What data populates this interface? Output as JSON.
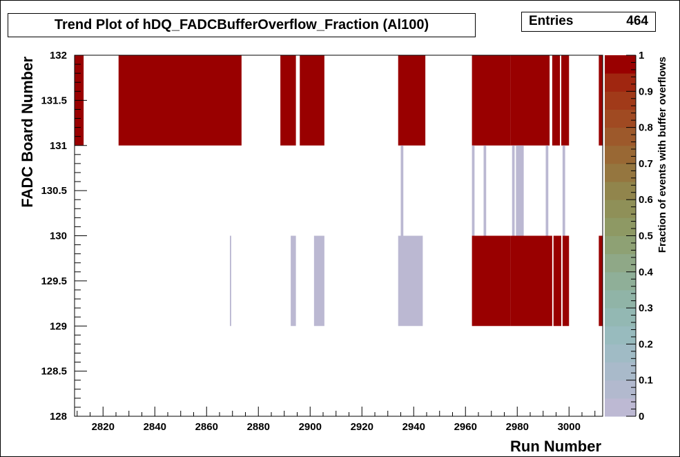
{
  "chart_data": {
    "type": "heatmap",
    "title": "Trend Plot of hDQ_FADCBufferOverflow_Fraction (Al100)",
    "stats": {
      "label": "Entries",
      "value": "464"
    },
    "xlabel": "Run Number",
    "ylabel": "FADC Board Number",
    "zlabel": "Fraction of events with buffer overflows",
    "xlim": [
      2809,
      3013
    ],
    "ylim": [
      128,
      132
    ],
    "zlim": [
      0,
      1
    ],
    "xticks": [
      "2820",
      "2840",
      "2860",
      "2880",
      "2900",
      "2920",
      "2940",
      "2960",
      "2980",
      "3000"
    ],
    "yticks": [
      "128",
      "128.5",
      "129",
      "129.5",
      "130",
      "130.5",
      "131",
      "131.5",
      "132"
    ],
    "zticks": [
      "0",
      "0.1",
      "0.2",
      "0.3",
      "0.4",
      "0.5",
      "0.6",
      "0.7",
      "0.8",
      "0.9",
      "1"
    ],
    "colors": {
      "full": "#990000",
      "zero": "#bbb8d2",
      "palette": [
        "#c2b9d5",
        "#adb9cc",
        "#9bbcc3",
        "#90b7ae",
        "#8fac90",
        "#8d9d6a",
        "#8f8c52",
        "#976f38",
        "#9f5226",
        "#a23215",
        "#990000"
      ]
    },
    "bands": [
      {
        "name": "Board 131",
        "y": [
          131,
          132
        ],
        "cells": [
          {
            "x0": 2809,
            "x1": 2812.5,
            "value": 1
          },
          {
            "x0": 2826,
            "x1": 2873.5,
            "value": 1
          },
          {
            "x0": 2888.5,
            "x1": 2894.5,
            "value": 1
          },
          {
            "x0": 2896,
            "x1": 2905.5,
            "value": 1
          },
          {
            "x0": 2934,
            "x1": 2944.5,
            "value": 1
          },
          {
            "x0": 2962.5,
            "x1": 2977.5,
            "value": 1
          },
          {
            "x0": 2977.5,
            "x1": 2992.5,
            "value": 1
          },
          {
            "x0": 2993.5,
            "x1": 2996.5,
            "value": 1
          },
          {
            "x0": 2997,
            "x1": 3000,
            "value": 1
          },
          {
            "x0": 3011.5,
            "x1": 3013,
            "value": 1
          }
        ]
      },
      {
        "name": "Board 130",
        "y": [
          130,
          131
        ],
        "cells": [
          {
            "x0": 2935,
            "x1": 2936,
            "value": 0
          },
          {
            "x0": 2962.5,
            "x1": 2963.5,
            "value": 0
          },
          {
            "x0": 2967,
            "x1": 2968,
            "value": 0
          },
          {
            "x0": 2978,
            "x1": 2979,
            "value": 0
          },
          {
            "x0": 2979.5,
            "x1": 2982.5,
            "value": 0
          },
          {
            "x0": 2991,
            "x1": 2992,
            "value": 0
          },
          {
            "x0": 2997.5,
            "x1": 2998.5,
            "value": 0
          }
        ]
      },
      {
        "name": "Board 129",
        "y": [
          129,
          130
        ],
        "cells": [
          {
            "x0": 2869,
            "x1": 2869.5,
            "value": 0
          },
          {
            "x0": 2892.5,
            "x1": 2894.5,
            "value": 0
          },
          {
            "x0": 2901.5,
            "x1": 2905.5,
            "value": 0
          },
          {
            "x0": 2934,
            "x1": 2943.5,
            "value": 0
          },
          {
            "x0": 2962.5,
            "x1": 2977.5,
            "value": 1
          },
          {
            "x0": 2977.5,
            "x1": 2993.5,
            "value": 1
          },
          {
            "x0": 2994,
            "x1": 2997,
            "value": 1
          },
          {
            "x0": 2997.5,
            "x1": 3000,
            "value": 1
          },
          {
            "x0": 3011.5,
            "x1": 3013,
            "value": 1
          }
        ]
      }
    ]
  }
}
